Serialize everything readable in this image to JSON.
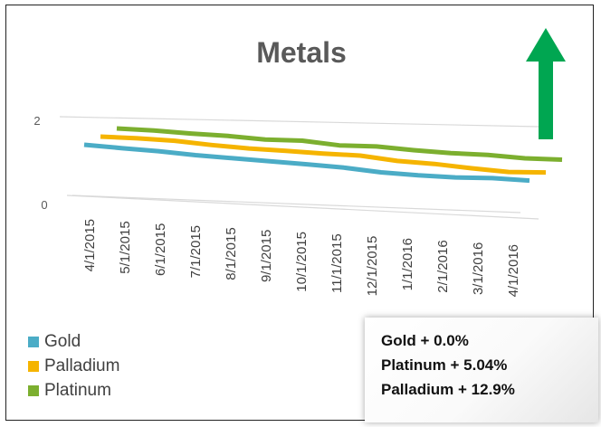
{
  "chart_data": {
    "type": "line",
    "view": "3d",
    "title": "Metals",
    "categories": [
      "4/1/2015",
      "5/1/2015",
      "6/1/2015",
      "7/1/2015",
      "8/1/2015",
      "9/1/2015",
      "10/1/2015",
      "11/1/2015",
      "12/1/2015",
      "1/1/2016",
      "2/1/2016",
      "3/1/2016",
      "4/1/2016"
    ],
    "series": [
      {
        "name": "Gold",
        "color": "#4bacc6",
        "values": [
          1.0,
          0.95,
          0.91,
          0.84,
          0.8,
          0.76,
          0.72,
          0.67,
          0.58,
          0.54,
          0.53,
          0.56,
          0.54
        ]
      },
      {
        "name": "Palladium",
        "color": "#f5b400",
        "values": [
          1.0,
          1.0,
          0.98,
          0.9,
          0.85,
          0.83,
          0.8,
          0.79,
          0.68,
          0.64,
          0.56,
          0.5,
          0.54
        ]
      },
      {
        "name": "Platinum",
        "color": "#7caf2f",
        "values": [
          1.0,
          0.99,
          0.95,
          0.93,
          0.87,
          0.89,
          0.8,
          0.82,
          0.76,
          0.72,
          0.72,
          0.67,
          0.68
        ]
      }
    ],
    "yticks": [
      "0",
      "2"
    ],
    "ylim": [
      0,
      2
    ],
    "legend_position": "bottom-left",
    "legend_order": [
      "Gold",
      "Palladium",
      "Platinum"
    ],
    "annotation": {
      "type": "arrow",
      "direction": "up",
      "color": "#00a651"
    }
  },
  "callout": {
    "lines": [
      "Gold  + 0.0%",
      "Platinum  +  5.04%",
      "Palladium  + 12.9%"
    ]
  }
}
